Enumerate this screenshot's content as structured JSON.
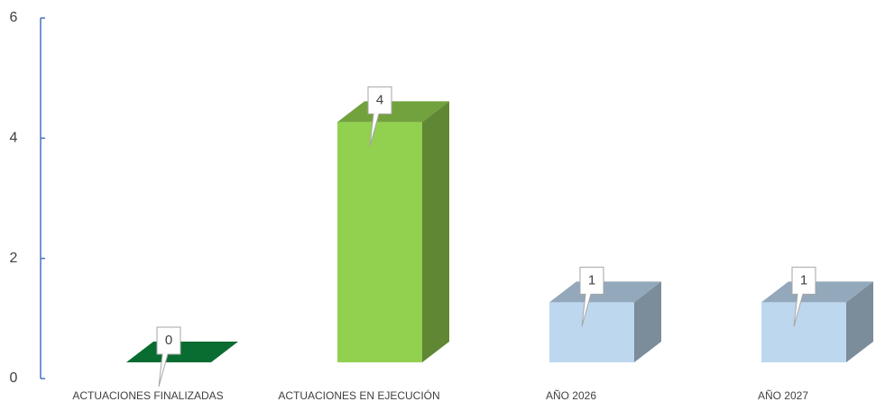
{
  "chart_data": {
    "type": "bar3d",
    "categories": [
      "ACTUACIONES FINALIZADAS",
      "ACTUACIONES EN EJECUCIÓN",
      "AÑO 2026",
      "AÑO 2027"
    ],
    "values": [
      0,
      4,
      1,
      1
    ],
    "colors": [
      "#0b8a3e",
      "#92d050",
      "#bdd7ee",
      "#bdd7ee"
    ],
    "ylim": [
      0,
      6
    ],
    "yticks": [
      0,
      2,
      4,
      6
    ]
  }
}
